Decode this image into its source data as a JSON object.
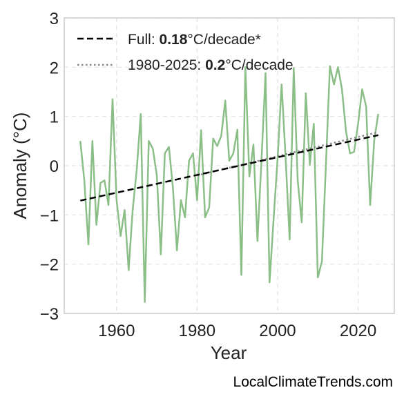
{
  "chart_data": {
    "type": "line",
    "xlabel": "Year",
    "ylabel": "Anomaly (°C)",
    "xlim": [
      1947,
      2029
    ],
    "ylim": [
      -3,
      3
    ],
    "xticks": [
      1960,
      1980,
      2000,
      2020
    ],
    "yticks": [
      3,
      2,
      1,
      0,
      -1,
      -2,
      -3
    ],
    "ytick_labels": [
      "3",
      "2",
      "1",
      "0",
      "−1",
      "−2",
      "−3"
    ],
    "grid": true,
    "legend_position": "top-left",
    "colors": {
      "series": "#8bbf87",
      "trend_full": "#000000",
      "trend_recent": "#888888",
      "axes": "#cccccc",
      "grid": "#e2e2e2"
    },
    "series": [
      {
        "x": [
          1951,
          1952,
          1953,
          1954,
          1955,
          1956,
          1957,
          1958,
          1959,
          1960,
          1961,
          1962,
          1963,
          1964,
          1965,
          1966,
          1967,
          1968,
          1969,
          1970,
          1971,
          1972,
          1973,
          1974,
          1975,
          1976,
          1977,
          1978,
          1979,
          1980,
          1981,
          1982,
          1983,
          1984,
          1985,
          1986,
          1987,
          1988,
          1989,
          1990,
          1991,
          1992,
          1993,
          1994,
          1995,
          1996,
          1997,
          1998,
          1999,
          2000,
          2001,
          2002,
          2003,
          2004,
          2005,
          2006,
          2007,
          2008,
          2009,
          2010,
          2011,
          2012,
          2013,
          2014,
          2015,
          2016,
          2017,
          2018,
          2019,
          2020,
          2021,
          2022,
          2023,
          2024,
          2025
        ],
        "values": [
          0.5,
          -0.3,
          -1.6,
          0.5,
          -1.2,
          -0.35,
          -0.3,
          -0.8,
          1.35,
          -0.7,
          -1.43,
          -0.9,
          -2.12,
          -0.9,
          -0.1,
          1.05,
          -2.77,
          0.5,
          0.35,
          -0.2,
          -1.8,
          0.25,
          0.38,
          -0.45,
          -1.72,
          -0.7,
          -1.05,
          0.1,
          0.25,
          -0.7,
          0.72,
          -1.05,
          -0.85,
          0.55,
          0.4,
          0.6,
          1.32,
          0.1,
          0.25,
          0.73,
          -2.22,
          2.0,
          -0.22,
          0.43,
          -1.53,
          0.1,
          1.88,
          -2.37,
          -1.1,
          0.15,
          1.65,
          0.15,
          -1.5,
          1.98,
          -0.3,
          -1.15,
          1.47,
          0.02,
          0.85,
          -2.27,
          -1.95,
          0.0,
          2.02,
          1.65,
          2.0,
          1.55,
          0.7,
          0.25,
          0.28,
          0.85,
          1.55,
          1.2,
          -0.8,
          0.52,
          1.05
        ]
      }
    ],
    "trend_full": {
      "x": [
        1951,
        2025
      ],
      "values": [
        -0.71,
        0.62
      ],
      "label_prefix": "Full: ",
      "label_value": "0.18",
      "label_suffix": "°C/decade*"
    },
    "trend_recent": {
      "x": [
        1980,
        2025
      ],
      "values": [
        -0.2,
        0.68
      ],
      "label_prefix": "1980-2025: ",
      "label_value": "0.2",
      "label_suffix": "°C/decade"
    }
  },
  "attribution": "LocalClimateTrends.com"
}
